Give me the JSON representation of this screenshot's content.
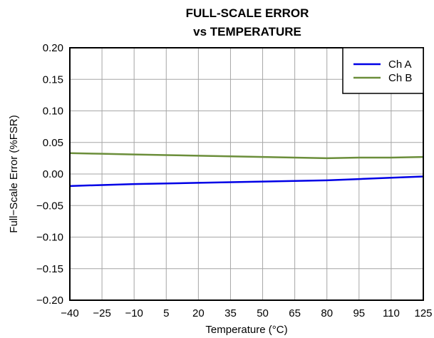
{
  "chart_data": {
    "type": "line",
    "title": [
      "FULL-SCALE ERROR",
      "vs TEMPERATURE"
    ],
    "xlabel": "Temperature (°C)",
    "ylabel": "Full−Scale Error (%FSR)",
    "x": [
      -40,
      -25,
      -10,
      5,
      20,
      35,
      50,
      65,
      80,
      95,
      110,
      125
    ],
    "x_ticks": [
      -40,
      -25,
      -10,
      5,
      20,
      35,
      50,
      65,
      80,
      95,
      110,
      125
    ],
    "x_tick_labels": [
      "−40",
      "−25",
      "−10",
      "5",
      "20",
      "35",
      "50",
      "65",
      "80",
      "95",
      "110",
      "125"
    ],
    "xlim": [
      -40,
      125
    ],
    "y_ticks": [
      -0.2,
      -0.15,
      -0.1,
      -0.05,
      0,
      0.05,
      0.1,
      0.15,
      0.2
    ],
    "y_tick_labels": [
      "−0.20",
      "−0.15",
      "−0.10",
      "−0.05",
      "0.00",
      "0.05",
      "0.10",
      "0.15",
      "0.20"
    ],
    "ylim": [
      -0.2,
      0.2
    ],
    "grid": true,
    "legend_position": "top-right",
    "series": [
      {
        "name": "Ch A",
        "color": "#0000e6",
        "x": [
          -40,
          -10,
          20,
          50,
          80,
          95,
          110,
          125
        ],
        "values": [
          -0.019,
          -0.016,
          -0.014,
          -0.012,
          -0.01,
          -0.008,
          -0.006,
          -0.004
        ]
      },
      {
        "name": "Ch B",
        "color": "#6b8e3a",
        "x": [
          -40,
          -25,
          -10,
          5,
          20,
          35,
          50,
          65,
          80,
          95,
          110,
          125
        ],
        "values": [
          0.033,
          0.032,
          0.031,
          0.03,
          0.029,
          0.028,
          0.027,
          0.026,
          0.025,
          0.026,
          0.026,
          0.027
        ]
      }
    ]
  }
}
